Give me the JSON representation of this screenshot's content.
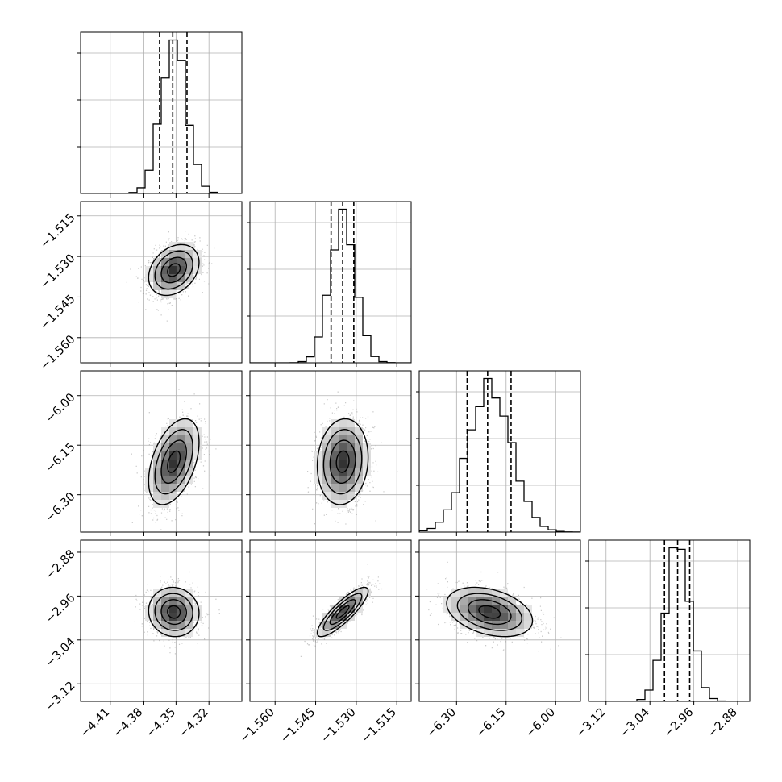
{
  "chart_data": {
    "type": "corner",
    "grid": true,
    "parameters": [
      {
        "name": "",
        "range": [
          -4.437,
          -4.29
        ],
        "ticks": [
          -4.41,
          -4.38,
          -4.35,
          -4.32
        ],
        "tick_labels": [
          "−4.41",
          "−4.38",
          "−4.35",
          "−4.32"
        ],
        "mean": -4.352,
        "std": 0.0115,
        "quantiles": [
          -4.365,
          -4.353,
          -4.34
        ]
      },
      {
        "name": "",
        "range": [
          -1.5693,
          -1.5097
        ],
        "ticks": [
          -1.56,
          -1.545,
          -1.53,
          -1.515
        ],
        "tick_labels": [
          "−1.560",
          "−1.545",
          "−1.530",
          "−1.515"
        ],
        "mean": -1.535,
        "std": 0.0047,
        "quantiles": [
          -1.5393,
          -1.535,
          -1.5309
        ]
      },
      {
        "name": "",
        "range": [
          -6.413,
          -5.925
        ],
        "ticks": [
          -6.3,
          -6.15,
          -6.0
        ],
        "tick_labels": [
          "−6.30",
          "−6.15",
          "−6.00"
        ],
        "mean": -6.2,
        "std": 0.065,
        "quantiles": [
          -6.268,
          -6.206,
          -6.135
        ]
      },
      {
        "name": "",
        "range": [
          -3.152,
          -2.858
        ],
        "ticks": [
          -3.12,
          -3.04,
          -2.96,
          -2.88
        ],
        "tick_labels": [
          "−3.12",
          "−3.04",
          "−2.96",
          "−2.88"
        ],
        "mean": -2.989,
        "std": 0.0225,
        "quantiles": [
          -3.0135,
          -2.9895,
          -2.9675
        ]
      }
    ],
    "pairs": [
      {
        "x": 0,
        "y": 1,
        "correlation": 0.3
      },
      {
        "x": 0,
        "y": 2,
        "correlation": 0.45
      },
      {
        "x": 1,
        "y": 2,
        "correlation": 0.1
      },
      {
        "x": 0,
        "y": 3,
        "correlation": -0.05
      },
      {
        "x": 1,
        "y": 3,
        "correlation": 0.85
      },
      {
        "x": 2,
        "y": 3,
        "correlation": -0.35
      }
    ],
    "histogram_bins": 20,
    "contour_levels_sigma": [
      0.5,
      1.0,
      1.5,
      2.0
    ]
  }
}
